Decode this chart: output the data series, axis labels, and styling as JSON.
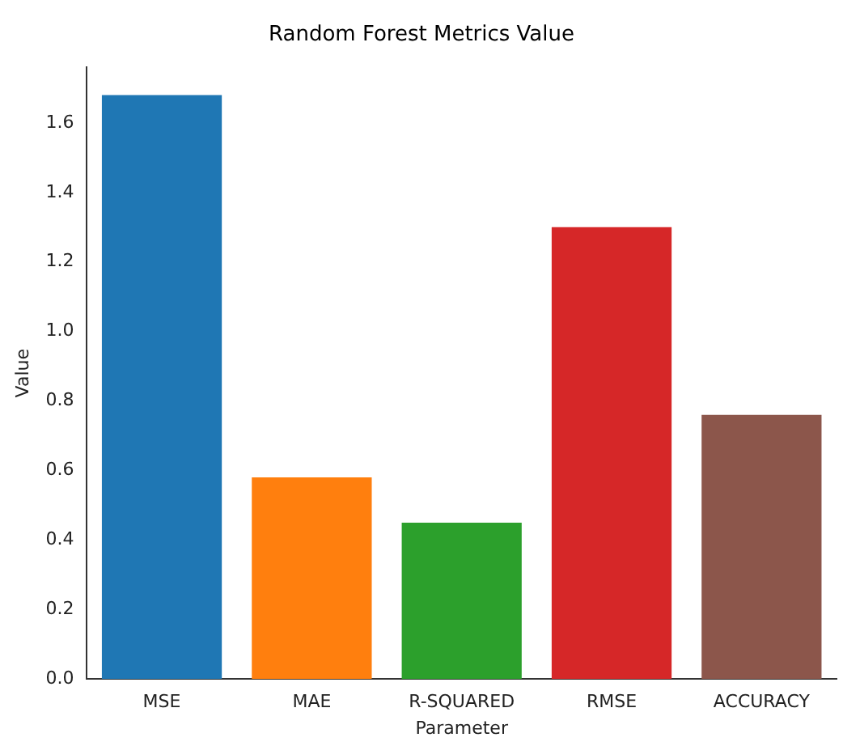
{
  "chart_data": {
    "type": "bar",
    "title": "Random Forest Metrics Value",
    "xlabel": "Parameter",
    "ylabel": "Value",
    "categories": [
      "MSE",
      "MAE",
      "R-SQUARED",
      "RMSE",
      "ACCURACY"
    ],
    "values": [
      1.68,
      0.58,
      0.45,
      1.3,
      0.76
    ],
    "colors": [
      "#1f77b4",
      "#ff7f0e",
      "#2ca02c",
      "#d62728",
      "#8c564b"
    ],
    "ylim": [
      0,
      1.76
    ],
    "yticks": [
      {
        "value": 0,
        "label": "0.0"
      },
      0.2,
      0.4,
      0.6,
      0.8,
      {
        "value": 1,
        "label": "1.0"
      },
      1.2,
      1.4,
      1.6
    ],
    "grid": false,
    "legend": false
  }
}
